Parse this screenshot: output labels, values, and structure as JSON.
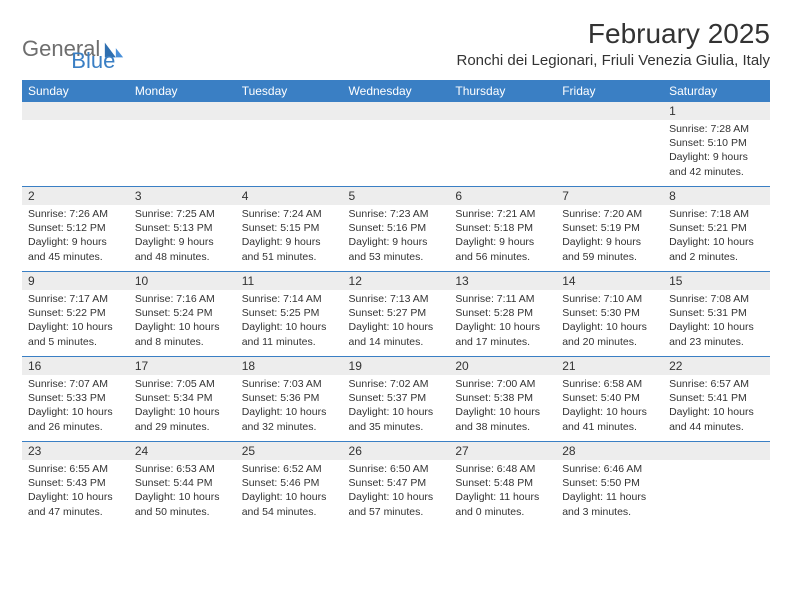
{
  "brand": {
    "part1": "General",
    "part2": "Blue"
  },
  "title": "February 2025",
  "location": "Ronchi dei Legionari, Friuli Venezia Giulia, Italy",
  "colors": {
    "header_bg": "#3a7fc4",
    "header_text": "#ffffff",
    "daynum_bg": "#ededed",
    "text": "#333333",
    "logo_gray": "#6e6e6e",
    "logo_blue": "#3a7fc4"
  },
  "days_of_week": [
    "Sunday",
    "Monday",
    "Tuesday",
    "Wednesday",
    "Thursday",
    "Friday",
    "Saturday"
  ],
  "weeks": [
    [
      null,
      null,
      null,
      null,
      null,
      null,
      {
        "n": "1",
        "sunrise": "Sunrise: 7:28 AM",
        "sunset": "Sunset: 5:10 PM",
        "daylight": "Daylight: 9 hours and 42 minutes."
      }
    ],
    [
      {
        "n": "2",
        "sunrise": "Sunrise: 7:26 AM",
        "sunset": "Sunset: 5:12 PM",
        "daylight": "Daylight: 9 hours and 45 minutes."
      },
      {
        "n": "3",
        "sunrise": "Sunrise: 7:25 AM",
        "sunset": "Sunset: 5:13 PM",
        "daylight": "Daylight: 9 hours and 48 minutes."
      },
      {
        "n": "4",
        "sunrise": "Sunrise: 7:24 AM",
        "sunset": "Sunset: 5:15 PM",
        "daylight": "Daylight: 9 hours and 51 minutes."
      },
      {
        "n": "5",
        "sunrise": "Sunrise: 7:23 AM",
        "sunset": "Sunset: 5:16 PM",
        "daylight": "Daylight: 9 hours and 53 minutes."
      },
      {
        "n": "6",
        "sunrise": "Sunrise: 7:21 AM",
        "sunset": "Sunset: 5:18 PM",
        "daylight": "Daylight: 9 hours and 56 minutes."
      },
      {
        "n": "7",
        "sunrise": "Sunrise: 7:20 AM",
        "sunset": "Sunset: 5:19 PM",
        "daylight": "Daylight: 9 hours and 59 minutes."
      },
      {
        "n": "8",
        "sunrise": "Sunrise: 7:18 AM",
        "sunset": "Sunset: 5:21 PM",
        "daylight": "Daylight: 10 hours and 2 minutes."
      }
    ],
    [
      {
        "n": "9",
        "sunrise": "Sunrise: 7:17 AM",
        "sunset": "Sunset: 5:22 PM",
        "daylight": "Daylight: 10 hours and 5 minutes."
      },
      {
        "n": "10",
        "sunrise": "Sunrise: 7:16 AM",
        "sunset": "Sunset: 5:24 PM",
        "daylight": "Daylight: 10 hours and 8 minutes."
      },
      {
        "n": "11",
        "sunrise": "Sunrise: 7:14 AM",
        "sunset": "Sunset: 5:25 PM",
        "daylight": "Daylight: 10 hours and 11 minutes."
      },
      {
        "n": "12",
        "sunrise": "Sunrise: 7:13 AM",
        "sunset": "Sunset: 5:27 PM",
        "daylight": "Daylight: 10 hours and 14 minutes."
      },
      {
        "n": "13",
        "sunrise": "Sunrise: 7:11 AM",
        "sunset": "Sunset: 5:28 PM",
        "daylight": "Daylight: 10 hours and 17 minutes."
      },
      {
        "n": "14",
        "sunrise": "Sunrise: 7:10 AM",
        "sunset": "Sunset: 5:30 PM",
        "daylight": "Daylight: 10 hours and 20 minutes."
      },
      {
        "n": "15",
        "sunrise": "Sunrise: 7:08 AM",
        "sunset": "Sunset: 5:31 PM",
        "daylight": "Daylight: 10 hours and 23 minutes."
      }
    ],
    [
      {
        "n": "16",
        "sunrise": "Sunrise: 7:07 AM",
        "sunset": "Sunset: 5:33 PM",
        "daylight": "Daylight: 10 hours and 26 minutes."
      },
      {
        "n": "17",
        "sunrise": "Sunrise: 7:05 AM",
        "sunset": "Sunset: 5:34 PM",
        "daylight": "Daylight: 10 hours and 29 minutes."
      },
      {
        "n": "18",
        "sunrise": "Sunrise: 7:03 AM",
        "sunset": "Sunset: 5:36 PM",
        "daylight": "Daylight: 10 hours and 32 minutes."
      },
      {
        "n": "19",
        "sunrise": "Sunrise: 7:02 AM",
        "sunset": "Sunset: 5:37 PM",
        "daylight": "Daylight: 10 hours and 35 minutes."
      },
      {
        "n": "20",
        "sunrise": "Sunrise: 7:00 AM",
        "sunset": "Sunset: 5:38 PM",
        "daylight": "Daylight: 10 hours and 38 minutes."
      },
      {
        "n": "21",
        "sunrise": "Sunrise: 6:58 AM",
        "sunset": "Sunset: 5:40 PM",
        "daylight": "Daylight: 10 hours and 41 minutes."
      },
      {
        "n": "22",
        "sunrise": "Sunrise: 6:57 AM",
        "sunset": "Sunset: 5:41 PM",
        "daylight": "Daylight: 10 hours and 44 minutes."
      }
    ],
    [
      {
        "n": "23",
        "sunrise": "Sunrise: 6:55 AM",
        "sunset": "Sunset: 5:43 PM",
        "daylight": "Daylight: 10 hours and 47 minutes."
      },
      {
        "n": "24",
        "sunrise": "Sunrise: 6:53 AM",
        "sunset": "Sunset: 5:44 PM",
        "daylight": "Daylight: 10 hours and 50 minutes."
      },
      {
        "n": "25",
        "sunrise": "Sunrise: 6:52 AM",
        "sunset": "Sunset: 5:46 PM",
        "daylight": "Daylight: 10 hours and 54 minutes."
      },
      {
        "n": "26",
        "sunrise": "Sunrise: 6:50 AM",
        "sunset": "Sunset: 5:47 PM",
        "daylight": "Daylight: 10 hours and 57 minutes."
      },
      {
        "n": "27",
        "sunrise": "Sunrise: 6:48 AM",
        "sunset": "Sunset: 5:48 PM",
        "daylight": "Daylight: 11 hours and 0 minutes."
      },
      {
        "n": "28",
        "sunrise": "Sunrise: 6:46 AM",
        "sunset": "Sunset: 5:50 PM",
        "daylight": "Daylight: 11 hours and 3 minutes."
      },
      null
    ]
  ]
}
